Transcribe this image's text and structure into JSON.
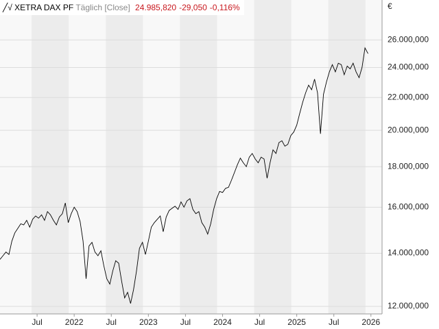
{
  "chart_data": {
    "type": "line",
    "title": "XETRA DAX PF",
    "subtitle": "Täglich [Close]",
    "annotations": [
      "24.985,820",
      "-29,050",
      "-0,116%"
    ],
    "y_label": "€",
    "log_scale": true,
    "grid": true,
    "xlim": [
      2021.0,
      2026.15
    ],
    "ylim": [
      11740,
      29190
    ],
    "xticks": [
      {
        "value": 2021.5,
        "label": "Jul"
      },
      2022,
      {
        "value": 2022.5,
        "label": "Jul"
      },
      2023,
      {
        "value": 2023.5,
        "label": "Jul"
      },
      2024,
      {
        "value": 2024.5,
        "label": "Jul"
      },
      2025,
      {
        "value": 2025.5,
        "label": "Jul"
      },
      2026
    ],
    "yticks": [
      {
        "value": 12000,
        "label": "12.000,000"
      },
      {
        "value": 14000,
        "label": "14.000,000"
      },
      {
        "value": 16000,
        "label": "16.000,000"
      },
      {
        "value": 18000,
        "label": "18.000,000"
      },
      {
        "value": 20000,
        "label": "20.000,000"
      },
      {
        "value": 22000,
        "label": "22.000,000"
      },
      {
        "value": 24000,
        "label": "24.000,000"
      },
      {
        "value": 26000,
        "label": "26.000,000"
      }
    ],
    "x": [
      2021.0,
      2021.04,
      2021.08,
      2021.12,
      2021.16,
      2021.2,
      2021.24,
      2021.28,
      2021.32,
      2021.36,
      2021.4,
      2021.44,
      2021.48,
      2021.52,
      2021.56,
      2021.6,
      2021.64,
      2021.68,
      2021.72,
      2021.76,
      2021.8,
      2021.84,
      2021.88,
      2021.92,
      2021.96,
      2022.0,
      2022.04,
      2022.08,
      2022.12,
      2022.16,
      2022.2,
      2022.24,
      2022.28,
      2022.32,
      2022.36,
      2022.4,
      2022.44,
      2022.48,
      2022.52,
      2022.56,
      2022.6,
      2022.64,
      2022.68,
      2022.72,
      2022.76,
      2022.8,
      2022.84,
      2022.88,
      2022.92,
      2022.96,
      2023.0,
      2023.04,
      2023.08,
      2023.12,
      2023.16,
      2023.2,
      2023.24,
      2023.28,
      2023.32,
      2023.36,
      2023.4,
      2023.44,
      2023.48,
      2023.52,
      2023.56,
      2023.6,
      2023.64,
      2023.68,
      2023.72,
      2023.76,
      2023.8,
      2023.84,
      2023.88,
      2023.92,
      2023.96,
      2024.0,
      2024.04,
      2024.08,
      2024.12,
      2024.16,
      2024.2,
      2024.24,
      2024.28,
      2024.32,
      2024.36,
      2024.4,
      2024.44,
      2024.48,
      2024.52,
      2024.56,
      2024.6,
      2024.64,
      2024.68,
      2024.72,
      2024.76,
      2024.8,
      2024.84,
      2024.88,
      2024.92,
      2024.96,
      2025.0,
      2025.04,
      2025.08,
      2025.12,
      2025.16,
      2025.2,
      2025.24,
      2025.28,
      2025.32,
      2025.36,
      2025.4,
      2025.44,
      2025.48,
      2025.52,
      2025.56,
      2025.6,
      2025.64,
      2025.68,
      2025.72,
      2025.76,
      2025.8,
      2025.84,
      2025.88,
      2025.92,
      2025.96
    ],
    "series": [
      {
        "name": "XETRA DAX PF",
        "color": "#000000",
        "values": [
          13750,
          13900,
          14050,
          13950,
          14500,
          14850,
          15050,
          15250,
          15200,
          15400,
          15100,
          15450,
          15600,
          15500,
          15650,
          15400,
          15800,
          15650,
          15400,
          15200,
          15550,
          15700,
          16200,
          15300,
          15700,
          16000,
          15800,
          15350,
          14500,
          13000,
          14300,
          14450,
          14050,
          13900,
          14100,
          13500,
          13000,
          12800,
          13300,
          13700,
          13600,
          12900,
          12300,
          12500,
          12100,
          12600,
          13300,
          14200,
          14450,
          13950,
          14500,
          15100,
          15300,
          15450,
          15600,
          14900,
          15550,
          15850,
          15950,
          16050,
          15900,
          16250,
          16000,
          16300,
          16400,
          15900,
          15700,
          15800,
          15300,
          15100,
          14800,
          15250,
          15900,
          16400,
          16750,
          16700,
          16900,
          16950,
          17300,
          17700,
          18100,
          18450,
          18200,
          18000,
          18500,
          18700,
          18400,
          18200,
          18500,
          18400,
          17400,
          18200,
          18900,
          18700,
          19300,
          19400,
          19100,
          19200,
          19700,
          19900,
          20300,
          21000,
          21700,
          22300,
          22800,
          22500,
          23200,
          22300,
          19800,
          22200,
          23000,
          23700,
          24200,
          23700,
          24300,
          24200,
          23500,
          24100,
          23900,
          24300,
          23700,
          23300,
          24000,
          25400,
          24985.82
        ]
      }
    ]
  }
}
